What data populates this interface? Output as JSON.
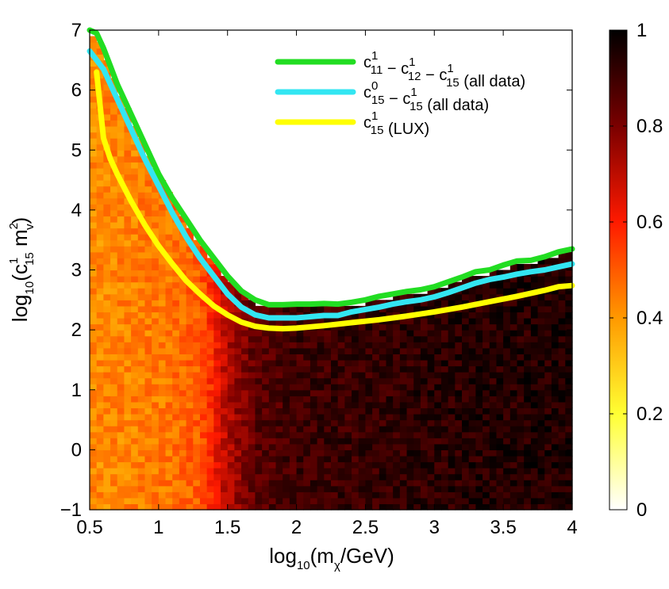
{
  "chart_data": {
    "type": "heatmap",
    "title": "",
    "xlabel": {
      "prefix": "log",
      "base": "10",
      "open": "(m",
      "sub": "χ",
      "rest": "/GeV)"
    },
    "ylabel": {
      "prefix": "log",
      "base": "10",
      "open": "(c",
      "sup1": "1",
      "sub1": "15",
      "mid": " m",
      "sup2": "2",
      "sub2": "v",
      "close": ")"
    },
    "xlim": [
      0.5,
      4
    ],
    "ylim": [
      -1,
      7
    ],
    "x_ticks": [
      0.5,
      1,
      1.5,
      2,
      2.5,
      3,
      3.5,
      4
    ],
    "x_tick_labels": [
      "0.5",
      "1",
      "1.5",
      "2",
      "2.5",
      "3",
      "3.5",
      "4"
    ],
    "y_ticks": [
      -1,
      0,
      1,
      2,
      3,
      4,
      5,
      6,
      7
    ],
    "y_tick_labels": [
      "−1",
      "0",
      "1",
      "2",
      "3",
      "4",
      "5",
      "6",
      "7"
    ],
    "colorbar": {
      "range": [
        0,
        1
      ],
      "ticks": [
        0,
        0.2,
        0.4,
        0.6,
        0.8,
        1
      ],
      "tick_labels": [
        "0",
        "0.2",
        "0.4",
        "0.6",
        "0.8",
        "1"
      ],
      "colormap": [
        "#ffffff",
        "#ffff33",
        "#ff9900",
        "#ff1a00",
        "#7a0000",
        "#000000"
      ]
    },
    "heatmap_description": "posterior density ~0.45 at low mass rising to ~0.9 above log10(m)=1.6, filled below the all-data boundary",
    "heatmap_profile": {
      "x": [
        0.5,
        1.0,
        1.3,
        1.4,
        1.5,
        1.7,
        2.0,
        3.0,
        4.0
      ],
      "value": [
        0.42,
        0.45,
        0.5,
        0.6,
        0.72,
        0.85,
        0.9,
        0.93,
        0.95
      ]
    },
    "series": [
      {
        "name": "green",
        "color": "#22dd22",
        "x": [
          0.5,
          0.55,
          0.6,
          0.65,
          0.7,
          0.75,
          0.8,
          0.9,
          1.0,
          1.1,
          1.2,
          1.3,
          1.4,
          1.5,
          1.6,
          1.7,
          1.8,
          1.9,
          2.0,
          2.1,
          2.2,
          2.3,
          2.4,
          2.5,
          2.6,
          2.7,
          2.8,
          2.9,
          3.0,
          3.1,
          3.2,
          3.3,
          3.4,
          3.5,
          3.6,
          3.7,
          3.8,
          3.9,
          4.0
        ],
        "y": [
          7.0,
          6.95,
          6.7,
          6.4,
          6.1,
          5.85,
          5.6,
          5.1,
          4.6,
          4.2,
          3.85,
          3.5,
          3.2,
          2.9,
          2.65,
          2.5,
          2.42,
          2.42,
          2.43,
          2.43,
          2.44,
          2.43,
          2.46,
          2.5,
          2.56,
          2.6,
          2.64,
          2.67,
          2.72,
          2.8,
          2.88,
          2.97,
          3.0,
          3.08,
          3.15,
          3.16,
          3.22,
          3.3,
          3.35
        ]
      },
      {
        "name": "cyan",
        "color": "#33e6f2",
        "x": [
          0.5,
          0.55,
          0.6,
          0.65,
          0.7,
          0.75,
          0.8,
          0.9,
          1.0,
          1.1,
          1.2,
          1.3,
          1.4,
          1.5,
          1.6,
          1.7,
          1.8,
          1.9,
          2.0,
          2.1,
          2.2,
          2.3,
          2.4,
          2.5,
          2.6,
          2.7,
          2.8,
          2.9,
          3.0,
          3.1,
          3.2,
          3.3,
          3.4,
          3.5,
          3.6,
          3.7,
          3.8,
          3.9,
          4.0
        ],
        "y": [
          6.65,
          6.5,
          6.35,
          6.1,
          5.85,
          5.6,
          5.35,
          4.85,
          4.4,
          3.95,
          3.55,
          3.2,
          2.9,
          2.6,
          2.38,
          2.25,
          2.2,
          2.2,
          2.2,
          2.22,
          2.24,
          2.24,
          2.3,
          2.34,
          2.38,
          2.43,
          2.47,
          2.5,
          2.55,
          2.62,
          2.7,
          2.78,
          2.84,
          2.88,
          2.93,
          2.97,
          3.0,
          3.05,
          3.1
        ]
      },
      {
        "name": "yellow",
        "color": "#ffff00",
        "x": [
          0.55,
          0.6,
          0.65,
          0.7,
          0.8,
          0.9,
          1.0,
          1.1,
          1.2,
          1.3,
          1.4,
          1.5,
          1.6,
          1.7,
          1.8,
          1.9,
          2.0,
          2.2,
          2.4,
          2.6,
          2.8,
          3.0,
          3.2,
          3.4,
          3.6,
          3.8,
          3.9,
          4.0
        ],
        "y": [
          6.3,
          5.2,
          4.85,
          4.6,
          4.15,
          3.75,
          3.4,
          3.1,
          2.82,
          2.6,
          2.4,
          2.25,
          2.13,
          2.06,
          2.03,
          2.02,
          2.03,
          2.07,
          2.12,
          2.17,
          2.23,
          2.3,
          2.38,
          2.47,
          2.56,
          2.66,
          2.72,
          2.74
        ]
      }
    ],
    "legend": {
      "position": "top-right",
      "entries": [
        {
          "color": "#22dd22",
          "parts": [
            [
              "c",
              ""
            ],
            [
              "1",
              "sup",
              "11",
              "sub"
            ],
            [
              " − c",
              ""
            ],
            [
              "1",
              "sup",
              "12",
              "sub"
            ],
            [
              " − c",
              ""
            ],
            [
              "1",
              "sup",
              "15",
              "sub"
            ],
            [
              " (all data)",
              ""
            ]
          ]
        },
        {
          "color": "#33e6f2",
          "parts": [
            [
              "c",
              ""
            ],
            [
              "0",
              "sup",
              "15",
              "sub"
            ],
            [
              " − c",
              ""
            ],
            [
              "1",
              "sup",
              "15",
              "sub"
            ],
            [
              " (all data)",
              ""
            ]
          ]
        },
        {
          "color": "#ffff00",
          "parts": [
            [
              "c",
              ""
            ],
            [
              "1",
              "sup",
              "15",
              "sub"
            ],
            [
              " (LUX)",
              ""
            ]
          ]
        }
      ]
    }
  }
}
